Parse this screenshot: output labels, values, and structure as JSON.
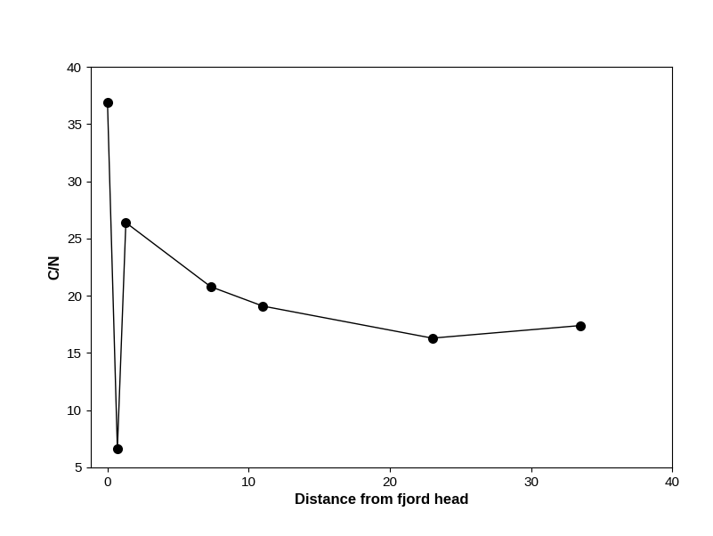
{
  "chart_data": {
    "type": "line",
    "x_label": "Distance from fjord head",
    "y_label": "C/N",
    "x": [
      0,
      0.7,
      1.3,
      7.3,
      11,
      23,
      33.5
    ],
    "values": [
      36.9,
      6.6,
      26.4,
      20.8,
      19.1,
      16.3,
      17.4
    ],
    "color": "#000000",
    "marker": "circle",
    "line_style": "solid",
    "xlim": [
      -1.2,
      40
    ],
    "xticks": [
      0,
      10,
      20,
      30,
      40
    ],
    "ylim": [
      5,
      40
    ],
    "yticks": [
      5,
      10,
      15,
      20,
      25,
      30,
      35,
      40
    ],
    "grid": false
  }
}
